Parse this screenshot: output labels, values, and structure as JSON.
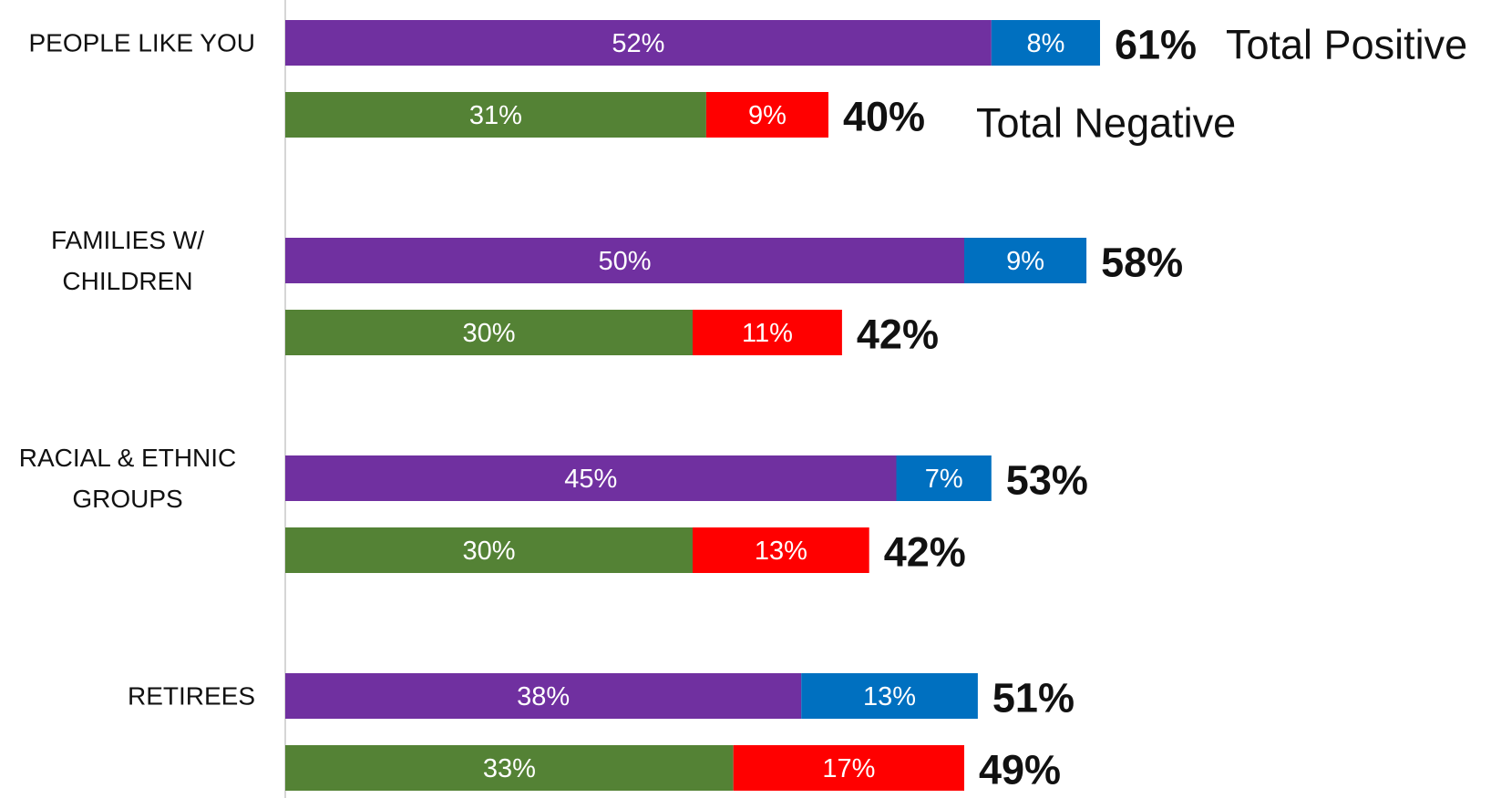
{
  "chart_data": {
    "type": "bar",
    "orientation": "horizontal",
    "stacked": true,
    "categories": [
      "PEOPLE LIKE YOU",
      "FAMILIES W/ CHILDREN",
      "RACIAL & ETHNIC GROUPS",
      "RETIREES"
    ],
    "groups": [
      {
        "label": "Total Positive",
        "totals": [
          61,
          58,
          53,
          51
        ],
        "total_labels": [
          "61%",
          "58%",
          "53%",
          "51%"
        ],
        "segments": [
          {
            "color": "#7030a0",
            "values": [
              52,
              50,
              45,
              38
            ],
            "value_labels": [
              "52%",
              "50%",
              "45%",
              "38%"
            ]
          },
          {
            "color": "#0070c0",
            "values": [
              8,
              9,
              7,
              13
            ],
            "value_labels": [
              "8%",
              "9%",
              "7%",
              "13%"
            ]
          }
        ]
      },
      {
        "label": "Total Negative",
        "totals": [
          40,
          42,
          42,
          49
        ],
        "total_labels": [
          "40%",
          "42%",
          "42%",
          "49%"
        ],
        "segments": [
          {
            "color": "#548235",
            "values": [
              31,
              30,
              30,
              33
            ],
            "value_labels": [
              "31%",
              "30%",
              "30%",
              "33%"
            ]
          },
          {
            "color": "#ff0000",
            "values": [
              9,
              11,
              13,
              17
            ],
            "value_labels": [
              "9%",
              "11%",
              "13%",
              "17%"
            ]
          }
        ]
      }
    ]
  }
}
